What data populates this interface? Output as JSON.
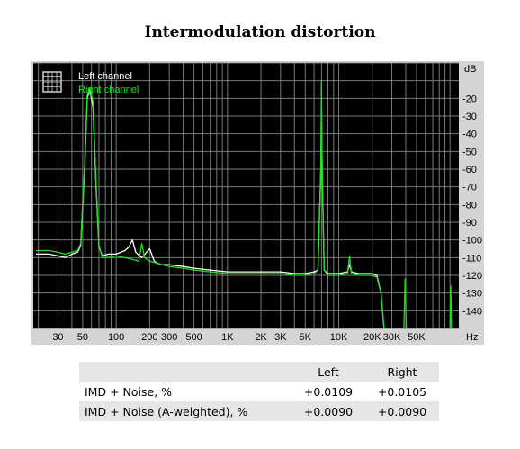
{
  "page_title": "Intermodulation distortion",
  "chart_data": {
    "type": "line",
    "title": "Intermodulation distortion",
    "xscale": "log",
    "xlim": [
      18,
      120000
    ],
    "ylim": [
      -150,
      0
    ],
    "y_unit_label": "dB",
    "x_unit_label": "Hz",
    "x_tick_labels": [
      {
        "value": 30,
        "label": "30"
      },
      {
        "value": 50,
        "label": "50"
      },
      {
        "value": 100,
        "label": "100"
      },
      {
        "value": 200,
        "label": "200"
      },
      {
        "value": 300,
        "label": "300"
      },
      {
        "value": 500,
        "label": "500"
      },
      {
        "value": 1000,
        "label": "1K"
      },
      {
        "value": 2000,
        "label": "2K"
      },
      {
        "value": 3000,
        "label": "3K"
      },
      {
        "value": 5000,
        "label": "5K"
      },
      {
        "value": 10000,
        "label": "10K"
      },
      {
        "value": 20000,
        "label": "20K"
      },
      {
        "value": 30000,
        "label": "30K"
      },
      {
        "value": 50000,
        "label": "50K"
      }
    ],
    "y_tick_labels": [
      {
        "value": -20,
        "label": "-20"
      },
      {
        "value": -30,
        "label": "-30"
      },
      {
        "value": -40,
        "label": "-40"
      },
      {
        "value": -50,
        "label": "-50"
      },
      {
        "value": -60,
        "label": "-60"
      },
      {
        "value": -70,
        "label": "-70"
      },
      {
        "value": -80,
        "label": "-80"
      },
      {
        "value": -90,
        "label": "-90"
      },
      {
        "value": -100,
        "label": "-100"
      },
      {
        "value": -110,
        "label": "-110"
      },
      {
        "value": -120,
        "label": "-120"
      },
      {
        "value": -130,
        "label": "-130"
      },
      {
        "value": -140,
        "label": "-140"
      }
    ],
    "grid": true,
    "background": "#000000",
    "legend_position": "top-left",
    "series": [
      {
        "name": "Left channel",
        "color": "#ffffff",
        "points": [
          [
            19,
            -108
          ],
          [
            25,
            -108
          ],
          [
            30,
            -109
          ],
          [
            35,
            -110
          ],
          [
            40,
            -108
          ],
          [
            45,
            -107
          ],
          [
            48,
            -103
          ],
          [
            52,
            -60
          ],
          [
            55,
            -20
          ],
          [
            58,
            -15
          ],
          [
            62,
            -25
          ],
          [
            66,
            -70
          ],
          [
            70,
            -104
          ],
          [
            75,
            -109
          ],
          [
            85,
            -108
          ],
          [
            100,
            -108
          ],
          [
            120,
            -106
          ],
          [
            130,
            -104
          ],
          [
            140,
            -100
          ],
          [
            150,
            -107
          ],
          [
            170,
            -110
          ],
          [
            200,
            -105
          ],
          [
            220,
            -112
          ],
          [
            250,
            -114
          ],
          [
            300,
            -114
          ],
          [
            400,
            -115
          ],
          [
            500,
            -116
          ],
          [
            700,
            -117
          ],
          [
            1000,
            -118
          ],
          [
            1500,
            -118
          ],
          [
            2000,
            -118
          ],
          [
            3000,
            -118
          ],
          [
            4000,
            -119
          ],
          [
            5000,
            -119
          ],
          [
            6000,
            -118
          ],
          [
            6500,
            -117
          ],
          [
            6900,
            -60
          ],
          [
            7000,
            -25
          ],
          [
            7100,
            -60
          ],
          [
            7400,
            -117
          ],
          [
            8000,
            -119
          ],
          [
            10000,
            -119
          ],
          [
            12000,
            -118
          ],
          [
            12500,
            -114
          ],
          [
            13000,
            -118
          ],
          [
            15000,
            -119
          ],
          [
            20000,
            -119
          ],
          [
            22000,
            -120
          ],
          [
            24000,
            -130
          ],
          [
            25500,
            -150
          ]
        ]
      },
      {
        "name": "Right channel",
        "color": "#22dd22",
        "points": [
          [
            19,
            -106
          ],
          [
            25,
            -106
          ],
          [
            30,
            -107
          ],
          [
            35,
            -108
          ],
          [
            40,
            -107
          ],
          [
            45,
            -106
          ],
          [
            48,
            -102
          ],
          [
            52,
            -58
          ],
          [
            55,
            -18
          ],
          [
            58,
            -14
          ],
          [
            62,
            -22
          ],
          [
            66,
            -68
          ],
          [
            70,
            -103
          ],
          [
            75,
            -110
          ],
          [
            85,
            -110
          ],
          [
            100,
            -109
          ],
          [
            120,
            -110
          ],
          [
            140,
            -111
          ],
          [
            160,
            -112
          ],
          [
            170,
            -102
          ],
          [
            180,
            -110
          ],
          [
            200,
            -112
          ],
          [
            300,
            -115
          ],
          [
            400,
            -116
          ],
          [
            500,
            -117
          ],
          [
            700,
            -118
          ],
          [
            1000,
            -119
          ],
          [
            1500,
            -119
          ],
          [
            2000,
            -119
          ],
          [
            3000,
            -119
          ],
          [
            4000,
            -120
          ],
          [
            5000,
            -120
          ],
          [
            6000,
            -119
          ],
          [
            6500,
            -117
          ],
          [
            6900,
            -60
          ],
          [
            7000,
            -10
          ],
          [
            7100,
            -60
          ],
          [
            7400,
            -117
          ],
          [
            8000,
            -120
          ],
          [
            10000,
            -120
          ],
          [
            12000,
            -119
          ],
          [
            12500,
            -109
          ],
          [
            13000,
            -119
          ],
          [
            15000,
            -120
          ],
          [
            20000,
            -120
          ],
          [
            22000,
            -121
          ],
          [
            24000,
            -130
          ],
          [
            25500,
            -150
          ]
        ]
      },
      {
        "name": "",
        "color": "#22dd22",
        "points": [
          [
            38500,
            -150
          ],
          [
            39500,
            -122
          ],
          [
            40500,
            -150
          ]
        ]
      },
      {
        "name": "",
        "color": "#22dd22",
        "points": [
          [
            100000,
            -150
          ],
          [
            101500,
            -126
          ],
          [
            103000,
            -150
          ]
        ]
      }
    ]
  },
  "table": {
    "headers": [
      "",
      "Left",
      "Right"
    ],
    "rows": [
      {
        "label": "IMD + Noise, %",
        "left": "+0.0109",
        "right": "+0.0105"
      },
      {
        "label": "IMD + Noise (A-weighted), %",
        "left": "+0.0090",
        "right": "+0.0090"
      }
    ]
  }
}
